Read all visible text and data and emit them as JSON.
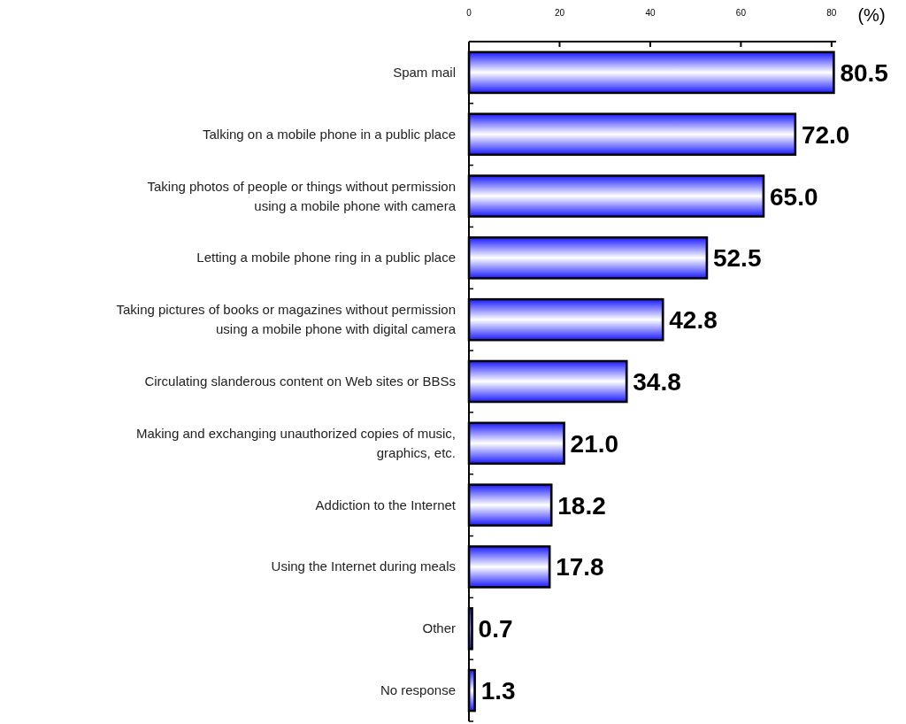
{
  "chart_data": {
    "type": "bar",
    "orientation": "horizontal",
    "xlabel": "(%)",
    "categories": [
      "Spam mail",
      "Talking on a mobile phone in a public place",
      "Taking photos of people or things without permission using a mobile phone with camera",
      "Letting a mobile phone ring in a public place",
      "Taking pictures of books or magazines without permission using a mobile phone with digital camera",
      "Circulating slanderous content on Web sites or BBSs",
      "Making and exchanging unauthorized copies of music, graphics, etc.",
      "Addiction to the Internet",
      "Using the Internet during meals",
      "Other",
      "No response"
    ],
    "values": [
      80.5,
      72.0,
      65.0,
      52.5,
      42.8,
      34.8,
      21.0,
      18.2,
      17.8,
      0.7,
      1.3
    ],
    "value_labels": [
      "80.5",
      "72.0",
      "65.0",
      "52.5",
      "42.8",
      "34.8",
      "21.0",
      "18.2",
      "17.8",
      "0.7",
      "1.3"
    ],
    "color": "#2a2aff",
    "xlim": [
      0,
      81
    ],
    "xticks": [
      0,
      20,
      40,
      60,
      80
    ]
  }
}
